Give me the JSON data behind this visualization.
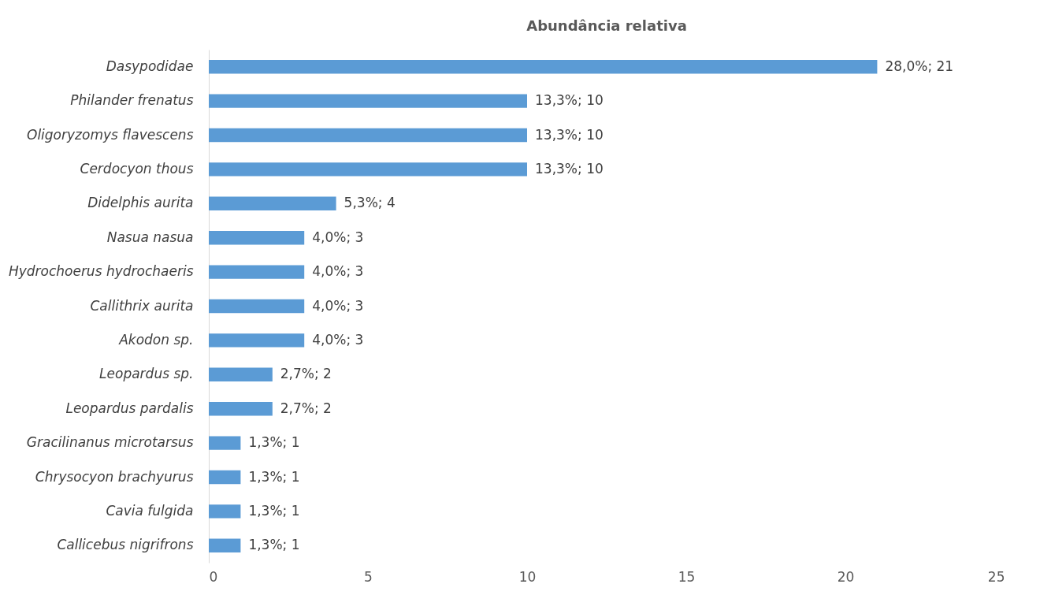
{
  "chart_data": {
    "type": "bar",
    "orientation": "horizontal",
    "title": "Abundância relativa",
    "categories": [
      "Dasypodidae",
      "Philander frenatus",
      "Oligoryzomys flavescens",
      "Cerdocyon thous",
      "Didelphis aurita",
      "Nasua nasua",
      "Hydrochoerus hydrochaeris",
      "Callithrix aurita",
      "Akodon sp.",
      "Leopardus sp.",
      "Leopardus pardalis",
      "Gracilinanus microtarsus",
      "Chrysocyon brachyurus",
      "Cavia fulgida",
      "Callicebus nigrifrons"
    ],
    "values": [
      21,
      10,
      10,
      10,
      4,
      3,
      3,
      3,
      3,
      2,
      2,
      1,
      1,
      1,
      1
    ],
    "value_labels": [
      "28,0%; 21",
      "13,3%; 10",
      "13,3%; 10",
      "13,3%; 10",
      "5,3%; 4",
      "4,0%; 3",
      "4,0%; 3",
      "4,0%; 3",
      "4,0%; 3",
      "2,7%; 2",
      "2,7%; 2",
      "1,3%; 1",
      "1,3%; 1",
      "1,3%; 1",
      "1,3%; 1"
    ],
    "color": "#5b9bd5",
    "xlim": [
      0,
      25
    ],
    "xticks": [
      0,
      5,
      10,
      15,
      20,
      25
    ],
    "grid": false
  }
}
